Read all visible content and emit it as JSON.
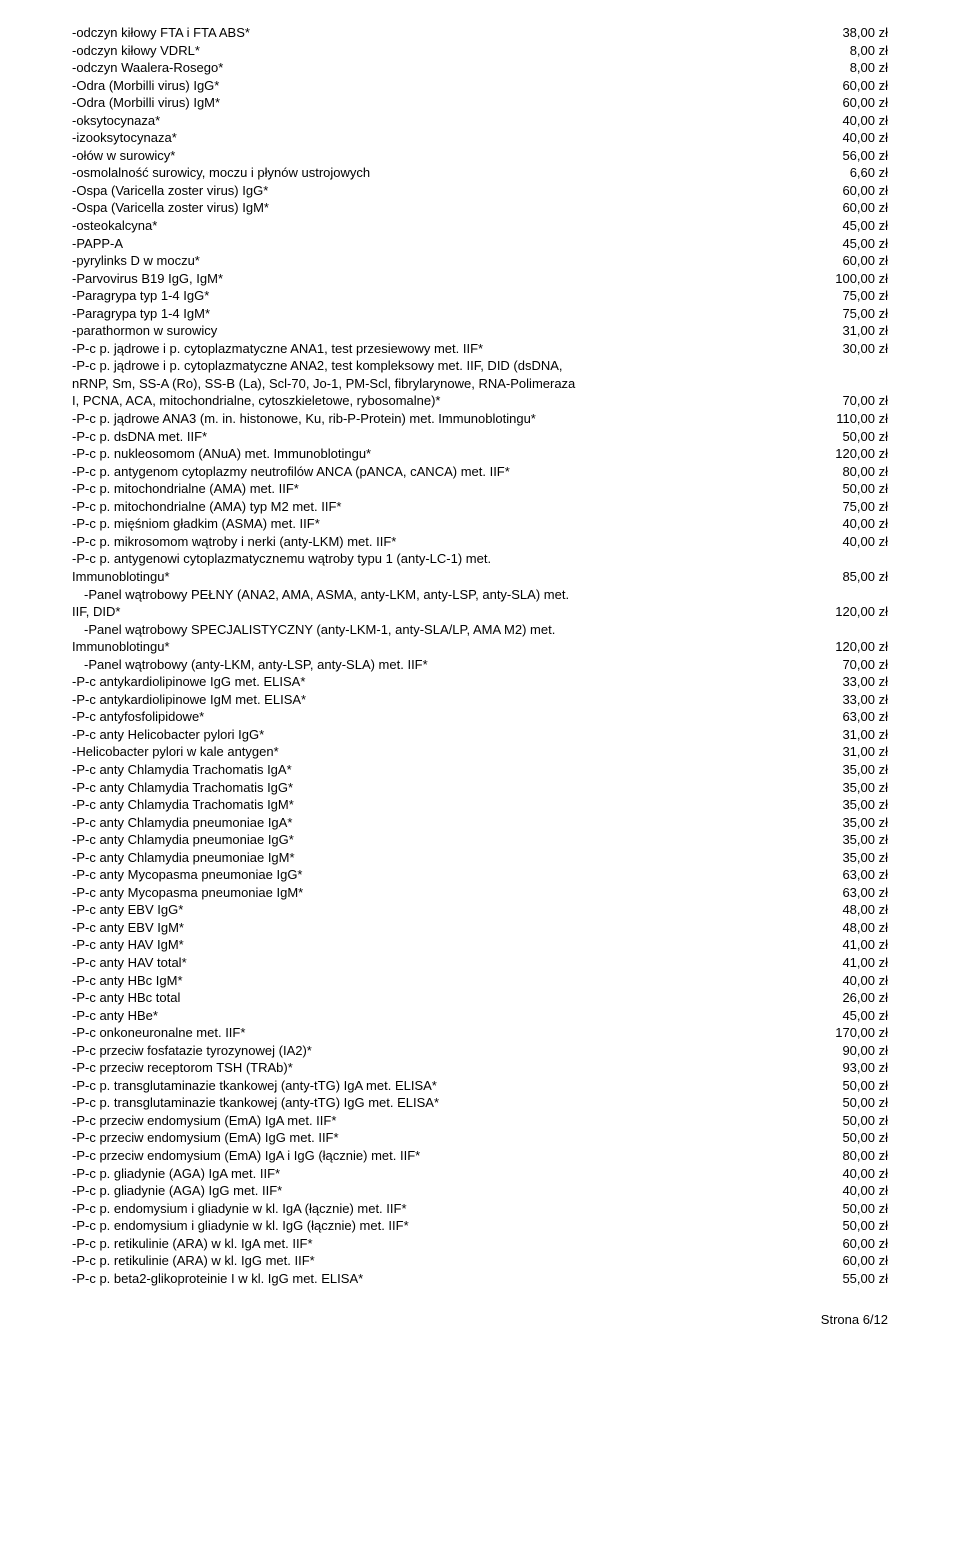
{
  "rows": [
    {
      "label": "-odczyn kiłowy FTA i FTA ABS*",
      "price": "38,00 zł"
    },
    {
      "label": "-odczyn kiłowy VDRL*",
      "price": "8,00 zł"
    },
    {
      "label": "-odczyn Waalera-Rosego*",
      "price": "8,00 zł"
    },
    {
      "label": "-Odra (Morbilli virus) IgG*",
      "price": "60,00 zł"
    },
    {
      "label": "-Odra (Morbilli virus) IgM*",
      "price": "60,00 zł"
    },
    {
      "label": "-oksytocynaza*",
      "price": "40,00 zł"
    },
    {
      "label": "-izooksytocynaza*",
      "price": "40,00 zł"
    },
    {
      "label": "-ołów w surowicy*",
      "price": "56,00 zł"
    },
    {
      "label": "-osmolalność surowicy, moczu i płynów ustrojowych",
      "price": "6,60 zł"
    },
    {
      "label": "-Ospa (Varicella zoster virus) IgG*",
      "price": "60,00 zł"
    },
    {
      "label": "-Ospa (Varicella zoster virus) IgM*",
      "price": "60,00 zł"
    },
    {
      "label": "-osteokalcyna*",
      "price": "45,00 zł"
    },
    {
      "label": "-PAPP-A",
      "price": "45,00 zł"
    },
    {
      "label": "-pyrylinks D w moczu*",
      "price": "60,00 zł"
    },
    {
      "label": "-Parvovirus B19 IgG, IgM*",
      "price": "100,00 zł"
    },
    {
      "label": "-Paragrypa typ 1-4 IgG*",
      "price": "75,00 zł"
    },
    {
      "label": "-Paragrypa typ 1-4 IgM*",
      "price": "75,00 zł"
    },
    {
      "label": "-parathormon w surowicy",
      "price": "31,00 zł"
    },
    {
      "label": "-P-c p. jądrowe i p. cytoplazmatyczne ANA1, test przesiewowy met. IIF*",
      "price": "30,00 zł"
    }
  ],
  "multi1": {
    "lines": [
      "-P-c p. jądrowe i p. cytoplazmatyczne ANA2, test kompleksowy met. IIF, DID (dsDNA,",
      "nRNP, Sm, SS-A (Ro), SS-B (La), Scl-70, Jo-1, PM-Scl, fibrylarynowe, RNA-Polimeraza",
      "I, PCNA, ACA, mitochondrialne, cytoszkieletowe, rybosomalne)*"
    ],
    "price": "70,00 zł"
  },
  "rows2": [
    {
      "label": "-P-c p. jądrowe ANA3 (m. in. histonowe, Ku, rib-P-Protein) met. Immunoblotingu*",
      "price": "110,00 zł"
    },
    {
      "label": "-P-c p. dsDNA met. IIF*",
      "price": "50,00 zł"
    },
    {
      "label": "-P-c p. nukleosomom (ANuA) met. Immunoblotingu*",
      "price": "120,00 zł"
    },
    {
      "label": "-P-c p. antygenom cytoplazmy neutrofilów ANCA (pANCA, cANCA) met. IIF*",
      "price": "80,00 zł"
    },
    {
      "label": "-P-c p. mitochondrialne (AMA) met. IIF*",
      "price": "50,00 zł"
    },
    {
      "label": "-P-c p. mitochondrialne (AMA) typ M2 met. IIF*",
      "price": "75,00 zł"
    },
    {
      "label": "-P-c p. mięśniom gładkim (ASMA) met. IIF*",
      "price": "40,00 zł"
    },
    {
      "label": "-P-c p. mikrosomom wątroby i nerki (anty-LKM) met. IIF*",
      "price": "40,00 zł"
    }
  ],
  "multi2": {
    "lines": [
      "-P-c p. antygenowi cytoplazmatycznemu wątroby typu 1 (anty-LC-1) met.",
      "Immunoblotingu*"
    ],
    "price": "85,00 zł"
  },
  "multi3": {
    "lines": [
      "  -Panel wątrobowy PEŁNY (ANA2, AMA, ASMA, anty-LKM, anty-LSP, anty-SLA) met.",
      "IIF, DID*"
    ],
    "price": "120,00 zł"
  },
  "multi4": {
    "lines": [
      "  -Panel wątrobowy SPECJALISTYCZNY (anty-LKM-1, anty-SLA/LP, AMA M2) met.",
      "Immunoblotingu*"
    ],
    "price": "120,00 zł"
  },
  "rows3": [
    {
      "label": "  -Panel wątrobowy (anty-LKM, anty-LSP, anty-SLA) met. IIF*",
      "price": "70,00 zł"
    },
    {
      "label": "-P-c antykardiolipinowe IgG met. ELISA*",
      "price": "33,00 zł"
    },
    {
      "label": "-P-c antykardiolipinowe IgM met. ELISA*",
      "price": "33,00 zł"
    },
    {
      "label": "-P-c antyfosfolipidowe*",
      "price": "63,00 zł"
    },
    {
      "label": "-P-c anty Helicobacter pylori IgG*",
      "price": "31,00 zł"
    },
    {
      "label": "-Helicobacter pylori w kale antygen*",
      "price": "31,00 zł"
    },
    {
      "label": "-P-c anty Chlamydia Trachomatis IgA*",
      "price": "35,00 zł"
    },
    {
      "label": "-P-c anty Chlamydia Trachomatis IgG*",
      "price": "35,00 zł"
    },
    {
      "label": "-P-c anty Chlamydia Trachomatis IgM*",
      "price": "35,00 zł"
    },
    {
      "label": "-P-c anty Chlamydia pneumoniae IgA*",
      "price": "35,00 zł"
    },
    {
      "label": "-P-c anty Chlamydia pneumoniae IgG*",
      "price": "35,00 zł"
    },
    {
      "label": "-P-c anty Chlamydia pneumoniae IgM*",
      "price": "35,00 zł"
    },
    {
      "label": "-P-c anty Mycopasma pneumoniae IgG*",
      "price": "63,00 zł"
    },
    {
      "label": "-P-c anty Mycopasma pneumoniae IgM*",
      "price": "63,00 zł"
    },
    {
      "label": "-P-c anty EBV IgG*",
      "price": "48,00 zł"
    },
    {
      "label": "-P-c anty EBV IgM*",
      "price": "48,00 zł"
    },
    {
      "label": "-P-c anty HAV IgM*",
      "price": "41,00 zł"
    },
    {
      "label": "-P-c anty HAV total*",
      "price": "41,00 zł"
    },
    {
      "label": "-P-c anty HBc IgM*",
      "price": "40,00 zł"
    },
    {
      "label": "-P-c anty HBc total",
      "price": "26,00 zł"
    },
    {
      "label": "-P-c anty HBe*",
      "price": "45,00 zł"
    },
    {
      "label": "-P-c onkoneuronalne met. IIF*",
      "price": "170,00 zł"
    },
    {
      "label": "-P-c przeciw fosfatazie tyrozynowej (IA2)*",
      "price": "90,00 zł"
    },
    {
      "label": "-P-c przeciw receptorom TSH (TRAb)*",
      "price": "93,00 zł"
    },
    {
      "label": "-P-c p. transglutaminazie tkankowej (anty-tTG) IgA met. ELISA*",
      "price": "50,00 zł"
    },
    {
      "label": "-P-c p. transglutaminazie tkankowej (anty-tTG) IgG met. ELISA*",
      "price": "50,00 zł"
    },
    {
      "label": "-P-c przeciw endomysium (EmA) IgA met. IIF*",
      "price": "50,00 zł"
    },
    {
      "label": "-P-c przeciw endomysium (EmA) IgG met. IIF*",
      "price": "50,00 zł"
    },
    {
      "label": "-P-c przeciw endomysium (EmA) IgA i IgG (łącznie) met. IIF*",
      "price": "80,00 zł"
    },
    {
      "label": "-P-c p. gliadynie (AGA) IgA met. IIF*",
      "price": "40,00 zł"
    },
    {
      "label": "-P-c p. gliadynie (AGA) IgG met. IIF*",
      "price": "40,00 zł"
    },
    {
      "label": "-P-c p. endomysium i gliadynie w kl. IgA (łącznie) met. IIF*",
      "price": "50,00 zł"
    },
    {
      "label": "-P-c p. endomysium i gliadynie w kl. IgG (łącznie) met. IIF*",
      "price": "50,00 zł"
    },
    {
      "label": "-P-c p. retikulinie (ARA) w kl. IgA met. IIF*",
      "price": "60,00 zł"
    },
    {
      "label": "-P-c p. retikulinie (ARA) w kl. IgG met. IIF*",
      "price": "60,00 zł"
    },
    {
      "label": "-P-c p. beta2-glikoproteinie I w kl. IgG met. ELISA*",
      "price": "55,00 zł"
    }
  ],
  "footer": "Strona 6/12"
}
